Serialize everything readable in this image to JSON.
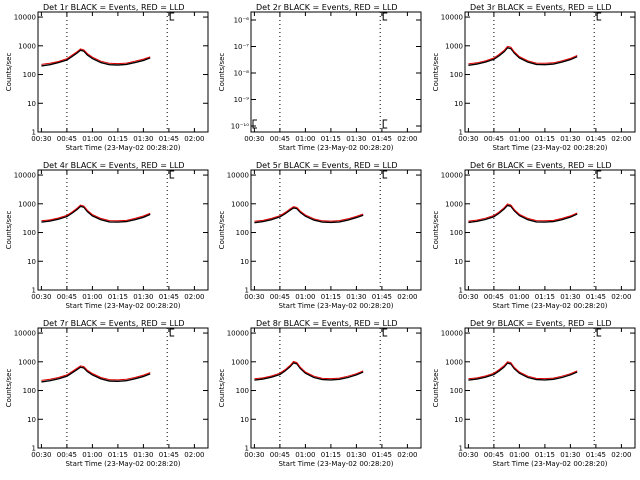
{
  "figure": {
    "background": "#ffffff",
    "event_color": "#000000",
    "lld_color": "#dd0000"
  },
  "chart_data": [
    {
      "type": "line",
      "title": "Det 1r BLACK = Events, RED = LLD",
      "xlabel": "Start Time (23-May-02 00:28:20)",
      "ylabel": "Counts/sec",
      "y_scale": "log",
      "xlim": [
        "00:28",
        "02:08"
      ],
      "ylim": [
        1,
        15000
      ],
      "x_tick_labels": [
        "00:30",
        "00:45",
        "01:00",
        "01:15",
        "01:30",
        "01:45",
        "02:00"
      ],
      "y_tick_labels": [
        "1",
        "10",
        "100",
        "1000",
        "10000"
      ],
      "markers": [
        "00:45",
        "01:44"
      ],
      "series": [
        {
          "x": [
            "00:30",
            "00:35",
            "00:40",
            "00:45",
            "00:48",
            "00:51",
            "00:53",
            "00:55",
            "00:57",
            "01:00",
            "01:05",
            "01:10",
            "01:15",
            "01:20",
            "01:25",
            "01:30",
            "01:34"
          ],
          "y": [
            200,
            220,
            260,
            320,
            420,
            560,
            700,
            650,
            480,
            360,
            260,
            220,
            215,
            225,
            260,
            310,
            380
          ]
        },
        {
          "x": [
            "00:30",
            "00:35",
            "00:40",
            "00:45",
            "00:48",
            "00:51",
            "00:53",
            "00:55",
            "00:57",
            "01:00",
            "01:05",
            "01:10",
            "01:15",
            "01:20",
            "01:25",
            "01:30",
            "01:34"
          ],
          "y": [
            225,
            245,
            285,
            355,
            470,
            630,
            780,
            720,
            540,
            400,
            290,
            245,
            240,
            250,
            290,
            345,
            410
          ]
        }
      ]
    },
    {
      "type": "line",
      "title": "Det 2r BLACK = Events, RED = LLD",
      "xlabel": "Start Time (23-May-02 00:28:20)",
      "ylabel": "Counts/sec",
      "y_scale": "log",
      "xlim": [
        "00:28",
        "02:08"
      ],
      "ylim": [
        1e-10,
        1e-05
      ],
      "x_tick_labels": [
        "00:30",
        "00:45",
        "01:00",
        "01:15",
        "01:30",
        "01:45",
        "02:00"
      ],
      "y_tick_labels": [
        "10⁻⁶",
        "10⁻⁷",
        "10⁻⁸",
        "10⁻⁹",
        "10⁻¹⁰"
      ],
      "markers": [
        "00:45",
        "01:44"
      ],
      "series": []
    },
    {
      "type": "line",
      "title": "Det 3r BLACK = Events, RED = LLD",
      "xlabel": "Start Time (23-May-02 00:28:20)",
      "ylabel": "Counts/sec",
      "y_scale": "log",
      "xlim": [
        "00:28",
        "02:08"
      ],
      "ylim": [
        1,
        15000
      ],
      "x_tick_labels": [
        "00:30",
        "00:45",
        "01:00",
        "01:15",
        "01:30",
        "01:45",
        "02:00"
      ],
      "y_tick_labels": [
        "1",
        "10",
        "100",
        "1000",
        "10000"
      ],
      "markers": [
        "00:45",
        "01:44"
      ],
      "series": [
        {
          "x": [
            "00:30",
            "00:35",
            "00:40",
            "00:45",
            "00:48",
            "00:51",
            "00:53",
            "00:55",
            "00:57",
            "01:00",
            "01:05",
            "01:10",
            "01:15",
            "01:20",
            "01:25",
            "01:30",
            "01:34"
          ],
          "y": [
            210,
            230,
            270,
            340,
            450,
            620,
            850,
            800,
            560,
            380,
            270,
            225,
            220,
            230,
            270,
            330,
            420
          ]
        },
        {
          "x": [
            "00:30",
            "00:35",
            "00:40",
            "00:45",
            "00:48",
            "00:51",
            "00:53",
            "00:55",
            "00:57",
            "01:00",
            "01:05",
            "01:10",
            "01:15",
            "01:20",
            "01:25",
            "01:30",
            "01:34"
          ],
          "y": [
            235,
            255,
            300,
            375,
            500,
            690,
            950,
            890,
            620,
            420,
            300,
            250,
            245,
            255,
            300,
            365,
            460
          ]
        }
      ]
    },
    {
      "type": "line",
      "title": "Det 4r BLACK = Events, RED = LLD",
      "xlabel": "Start Time (23-May-02 00:28:20)",
      "ylabel": "Counts/sec",
      "y_scale": "log",
      "xlim": [
        "00:28",
        "02:08"
      ],
      "ylim": [
        1,
        15000
      ],
      "x_tick_labels": [
        "00:30",
        "00:45",
        "01:00",
        "01:15",
        "01:30",
        "01:45",
        "02:00"
      ],
      "y_tick_labels": [
        "1",
        "10",
        "100",
        "1000",
        "10000"
      ],
      "markers": [
        "00:45",
        "01:44"
      ],
      "series": [
        {
          "x": [
            "00:30",
            "00:35",
            "00:40",
            "00:45",
            "00:48",
            "00:51",
            "00:53",
            "00:55",
            "00:57",
            "01:00",
            "01:05",
            "01:10",
            "01:15",
            "01:20",
            "01:25",
            "01:30",
            "01:34"
          ],
          "y": [
            230,
            250,
            290,
            360,
            470,
            640,
            820,
            760,
            540,
            380,
            280,
            235,
            230,
            240,
            280,
            340,
            430
          ]
        },
        {
          "x": [
            "00:30",
            "00:35",
            "00:40",
            "00:45",
            "00:48",
            "00:51",
            "00:53",
            "00:55",
            "00:57",
            "01:00",
            "01:05",
            "01:10",
            "01:15",
            "01:20",
            "01:25",
            "01:30",
            "01:34"
          ],
          "y": [
            255,
            275,
            320,
            395,
            520,
            710,
            910,
            840,
            600,
            420,
            310,
            260,
            255,
            265,
            310,
            375,
            470
          ]
        }
      ]
    },
    {
      "type": "line",
      "title": "Det 5r BLACK = Events, RED = LLD",
      "xlabel": "Start Time (23-May-02 00:28:20)",
      "ylabel": "Counts/sec",
      "y_scale": "log",
      "xlim": [
        "00:28",
        "02:08"
      ],
      "ylim": [
        1,
        15000
      ],
      "x_tick_labels": [
        "00:30",
        "00:45",
        "01:00",
        "01:15",
        "01:30",
        "01:45",
        "02:00"
      ],
      "y_tick_labels": [
        "1",
        "10",
        "100",
        "1000",
        "10000"
      ],
      "markers": [
        "00:45",
        "01:44"
      ],
      "series": [
        {
          "x": [
            "00:30",
            "00:35",
            "00:40",
            "00:45",
            "00:48",
            "00:51",
            "00:53",
            "00:55",
            "00:57",
            "01:00",
            "01:05",
            "01:10",
            "01:15",
            "01:20",
            "01:25",
            "01:30",
            "01:34"
          ],
          "y": [
            220,
            240,
            280,
            350,
            450,
            600,
            720,
            680,
            500,
            370,
            270,
            230,
            225,
            235,
            270,
            330,
            400
          ]
        },
        {
          "x": [
            "00:30",
            "00:35",
            "00:40",
            "00:45",
            "00:48",
            "00:51",
            "00:53",
            "00:55",
            "00:57",
            "01:00",
            "01:05",
            "01:10",
            "01:15",
            "01:20",
            "01:25",
            "01:30",
            "01:34"
          ],
          "y": [
            245,
            265,
            310,
            385,
            495,
            665,
            800,
            750,
            555,
            410,
            300,
            255,
            250,
            260,
            300,
            365,
            440
          ]
        }
      ]
    },
    {
      "type": "line",
      "title": "Det 6r BLACK = Events, RED = LLD",
      "xlabel": "Start Time (23-May-02 00:28:20)",
      "ylabel": "Counts/sec",
      "y_scale": "log",
      "xlim": [
        "00:28",
        "02:08"
      ],
      "ylim": [
        1,
        15000
      ],
      "x_tick_labels": [
        "00:30",
        "00:45",
        "01:00",
        "01:15",
        "01:30",
        "01:45",
        "02:00"
      ],
      "y_tick_labels": [
        "1",
        "10",
        "100",
        "1000",
        "10000"
      ],
      "markers": [
        "00:45",
        "01:44"
      ],
      "series": [
        {
          "x": [
            "00:30",
            "00:35",
            "00:40",
            "00:45",
            "00:48",
            "00:51",
            "00:53",
            "00:55",
            "00:57",
            "01:00",
            "01:05",
            "01:10",
            "01:15",
            "01:20",
            "01:25",
            "01:30",
            "01:34"
          ],
          "y": [
            225,
            245,
            285,
            355,
            470,
            660,
            880,
            820,
            570,
            390,
            280,
            235,
            230,
            240,
            280,
            345,
            440
          ]
        },
        {
          "x": [
            "00:30",
            "00:35",
            "00:40",
            "00:45",
            "00:48",
            "00:51",
            "00:53",
            "00:55",
            "00:57",
            "01:00",
            "01:05",
            "01:10",
            "01:15",
            "01:20",
            "01:25",
            "01:30",
            "01:34"
          ],
          "y": [
            250,
            270,
            315,
            390,
            520,
            730,
            980,
            910,
            630,
            430,
            310,
            260,
            255,
            265,
            310,
            380,
            480
          ]
        }
      ]
    },
    {
      "type": "line",
      "title": "Det 7r BLACK = Events, RED = LLD",
      "xlabel": "Start Time (23-May-02 00:28:20)",
      "ylabel": "Counts/sec",
      "y_scale": "log",
      "xlim": [
        "00:28",
        "02:08"
      ],
      "ylim": [
        1,
        15000
      ],
      "x_tick_labels": [
        "00:30",
        "00:45",
        "01:00",
        "01:15",
        "01:30",
        "01:45",
        "02:00"
      ],
      "y_tick_labels": [
        "1",
        "10",
        "100",
        "1000",
        "10000"
      ],
      "markers": [
        "00:45",
        "01:44"
      ],
      "series": [
        {
          "x": [
            "00:30",
            "00:35",
            "00:40",
            "00:45",
            "00:48",
            "00:51",
            "00:53",
            "00:55",
            "00:57",
            "01:00",
            "01:05",
            "01:10",
            "01:15",
            "01:20",
            "01:25",
            "01:30",
            "01:34"
          ],
          "y": [
            200,
            220,
            255,
            315,
            410,
            540,
            650,
            610,
            460,
            350,
            255,
            215,
            210,
            220,
            255,
            310,
            380
          ]
        },
        {
          "x": [
            "00:30",
            "00:35",
            "00:40",
            "00:45",
            "00:48",
            "00:51",
            "00:53",
            "00:55",
            "00:57",
            "01:00",
            "01:05",
            "01:10",
            "01:15",
            "01:20",
            "01:25",
            "01:30",
            "01:34"
          ],
          "y": [
            225,
            245,
            285,
            350,
            455,
            600,
            720,
            680,
            510,
            390,
            285,
            240,
            235,
            245,
            285,
            345,
            420
          ]
        }
      ]
    },
    {
      "type": "line",
      "title": "Det 8r BLACK = Events, RED = LLD",
      "xlabel": "Start Time (23-May-02 00:28:20)",
      "ylabel": "Counts/sec",
      "y_scale": "log",
      "xlim": [
        "00:28",
        "02:08"
      ],
      "ylim": [
        1,
        15000
      ],
      "x_tick_labels": [
        "00:30",
        "00:45",
        "01:00",
        "01:15",
        "01:30",
        "01:45",
        "02:00"
      ],
      "y_tick_labels": [
        "1",
        "10",
        "100",
        "1000",
        "10000"
      ],
      "markers": [
        "00:45",
        "01:44"
      ],
      "series": [
        {
          "x": [
            "00:30",
            "00:35",
            "00:40",
            "00:45",
            "00:48",
            "00:51",
            "00:53",
            "00:55",
            "00:57",
            "01:00",
            "01:05",
            "01:10",
            "01:15",
            "01:20",
            "01:25",
            "01:30",
            "01:34"
          ],
          "y": [
            230,
            250,
            290,
            360,
            480,
            680,
            920,
            850,
            590,
            400,
            285,
            240,
            235,
            245,
            285,
            350,
            440
          ]
        },
        {
          "x": [
            "00:30",
            "00:35",
            "00:40",
            "00:45",
            "00:48",
            "00:51",
            "00:53",
            "00:55",
            "00:57",
            "01:00",
            "01:05",
            "01:10",
            "01:15",
            "01:20",
            "01:25",
            "01:30",
            "01:34"
          ],
          "y": [
            255,
            275,
            320,
            400,
            530,
            750,
            1020,
            940,
            650,
            440,
            315,
            265,
            260,
            270,
            315,
            385,
            485
          ]
        }
      ]
    },
    {
      "type": "line",
      "title": "Det 9r BLACK = Events, RED = LLD",
      "xlabel": "Start Time (23-May-02 00:28:20)",
      "ylabel": "Counts/sec",
      "y_scale": "log",
      "xlim": [
        "00:28",
        "02:08"
      ],
      "ylim": [
        1,
        15000
      ],
      "x_tick_labels": [
        "00:30",
        "00:45",
        "01:00",
        "01:15",
        "01:30",
        "01:45",
        "02:00"
      ],
      "y_tick_labels": [
        "1",
        "10",
        "100",
        "1000",
        "10000"
      ],
      "markers": [
        "00:45",
        "01:44"
      ],
      "series": [
        {
          "x": [
            "00:30",
            "00:35",
            "00:40",
            "00:45",
            "00:48",
            "00:51",
            "00:53",
            "00:55",
            "00:57",
            "01:00",
            "01:05",
            "01:10",
            "01:15",
            "01:20",
            "01:25",
            "01:30",
            "01:34"
          ],
          "y": [
            230,
            250,
            290,
            360,
            480,
            660,
            900,
            840,
            580,
            400,
            285,
            240,
            235,
            245,
            285,
            350,
            440
          ]
        },
        {
          "x": [
            "00:30",
            "00:35",
            "00:40",
            "00:45",
            "00:48",
            "00:51",
            "00:53",
            "00:55",
            "00:57",
            "01:00",
            "01:05",
            "01:10",
            "01:15",
            "01:20",
            "01:25",
            "01:30",
            "01:34"
          ],
          "y": [
            255,
            275,
            320,
            400,
            530,
            730,
            1000,
            930,
            640,
            440,
            315,
            265,
            260,
            270,
            315,
            385,
            485
          ]
        }
      ]
    }
  ]
}
